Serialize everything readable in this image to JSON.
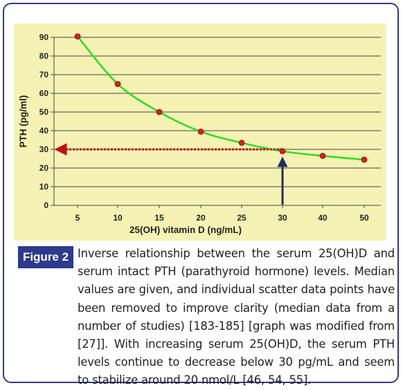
{
  "chart_data": {
    "type": "line",
    "xlabel": "25(OH) vitamin D (ng/mL)",
    "ylabel": "PTH (pg/ml)",
    "xlim": [
      3,
      52
    ],
    "ylim": [
      0,
      90
    ],
    "x_ticks": [
      5,
      10,
      15,
      20,
      25,
      30,
      40,
      50
    ],
    "y_ticks": [
      0,
      10,
      20,
      30,
      40,
      50,
      60,
      70,
      80,
      90
    ],
    "grid": "horizontal",
    "series": [
      {
        "name": "",
        "x": [
          5,
          10,
          15,
          20,
          25,
          30,
          40,
          50
        ],
        "y": [
          90.5,
          65,
          50,
          39.5,
          33.5,
          29,
          26.5,
          24.5
        ],
        "line_color": "#22e022",
        "marker_color": "#e01b1b"
      }
    ],
    "annotations": [
      {
        "type": "dotted-arrow-horizontal",
        "from": [
          30,
          30
        ],
        "to": [
          3,
          30
        ],
        "color": "#c01010"
      },
      {
        "type": "arrow-vertical",
        "from": [
          30,
          0
        ],
        "to": [
          30,
          25
        ],
        "color": "#1f2f5a"
      }
    ]
  },
  "colors": {
    "border": "#2e3a8c",
    "plot_background": "#f6f2b4",
    "label_background": "#2e3a8c"
  },
  "caption": {
    "label": "Figure 2",
    "text": "Inverse relationship between the serum 25(OH)D and serum intact PTH (parathyroid hormone) levels. Median values are given, and individual scatter data points have been removed to improve clarity (median data from a number of studies) [183-185] [graph was modified from [27]]. With increasing serum 25(OH)D, the serum PTH levels continue to decrease below 30 pg/mL and seem to stabilize around 20 nmol/L [46, 54, 55]."
  }
}
